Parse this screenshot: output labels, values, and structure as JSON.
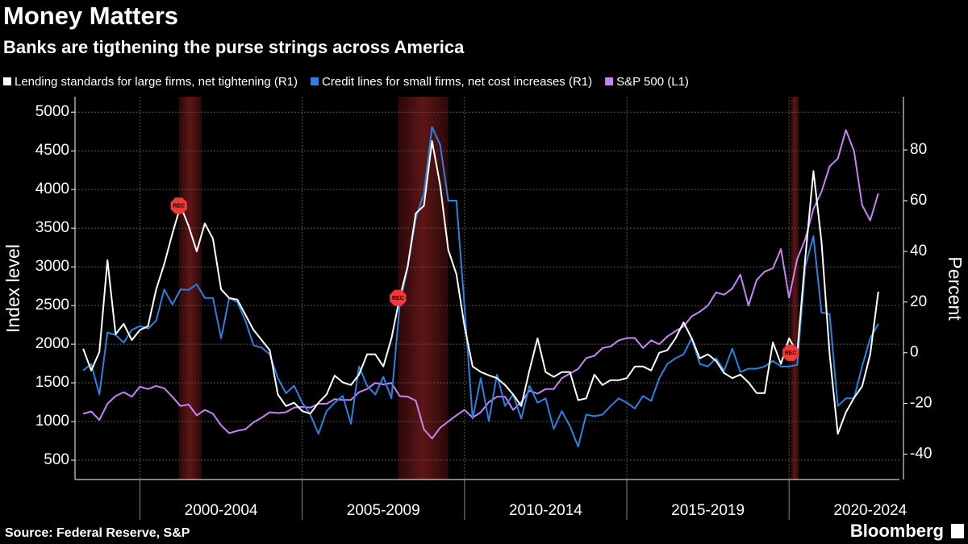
{
  "chart_data": {
    "type": "line",
    "title": "Money Matters",
    "subtitle": "Banks are tigthening the purse strings across America",
    "y_label": "Index level",
    "y2_label": "Percent",
    "source": "Source: Federal Reserve, S&P",
    "brand": "Bloomberg",
    "grid": true,
    "xlim": [
      1998,
      2023.4
    ],
    "xticks": [
      {
        "value": 2000,
        "label": "2000-2004"
      },
      {
        "value": 2005,
        "label": "2005-2009"
      },
      {
        "value": 2010,
        "label": "2010-2014"
      },
      {
        "value": 2015,
        "label": "2015-2019"
      },
      {
        "value": 2020,
        "label": "2020-2024"
      }
    ],
    "ylim": [
      250,
      5200
    ],
    "yticks": [
      500,
      1000,
      1500,
      2000,
      2500,
      3000,
      3500,
      4000,
      4500,
      5000
    ],
    "y2lim": [
      -50,
      101
    ],
    "y2ticks": [
      -40,
      -20,
      0,
      20,
      40,
      60,
      80
    ],
    "recessions": [
      {
        "start": 2001.2,
        "end": 2001.9,
        "label": "REC"
      },
      {
        "start": 2007.95,
        "end": 2009.5,
        "label": "REC"
      },
      {
        "start": 2020.05,
        "end": 2020.3,
        "label": "REC"
      }
    ],
    "x": [
      1998.25,
      1998.5,
      1998.75,
      1999,
      1999.25,
      1999.5,
      1999.75,
      2000,
      2000.25,
      2000.5,
      2000.75,
      2001,
      2001.25,
      2001.5,
      2001.75,
      2002,
      2002.25,
      2002.5,
      2002.75,
      2003,
      2003.25,
      2003.5,
      2003.75,
      2004,
      2004.25,
      2004.5,
      2004.75,
      2005,
      2005.25,
      2005.5,
      2005.75,
      2006,
      2006.25,
      2006.5,
      2006.75,
      2007,
      2007.25,
      2007.5,
      2007.75,
      2008,
      2008.25,
      2008.5,
      2008.75,
      2009,
      2009.25,
      2009.5,
      2009.75,
      2010,
      2010.25,
      2010.5,
      2010.75,
      2011,
      2011.25,
      2011.5,
      2011.75,
      2012,
      2012.25,
      2012.5,
      2012.75,
      2013,
      2013.25,
      2013.5,
      2013.75,
      2014,
      2014.25,
      2014.5,
      2014.75,
      2015,
      2015.25,
      2015.5,
      2015.75,
      2016,
      2016.25,
      2016.5,
      2016.75,
      2017,
      2017.25,
      2017.5,
      2017.75,
      2018,
      2018.25,
      2018.5,
      2018.75,
      2019,
      2019.25,
      2019.5,
      2019.75,
      2020,
      2020.25,
      2020.5,
      2020.75,
      2021,
      2021.25,
      2021.5,
      2021.75,
      2022,
      2022.25,
      2022.5,
      2022.75
    ],
    "series": [
      {
        "name": "Lending standards for large firms, net tightening (R1)",
        "color": "#ffffff",
        "axis": "y2",
        "values": [
          1.6,
          -7,
          0.3,
          36.5,
          7.3,
          11.4,
          5,
          9,
          10.5,
          25,
          35,
          47,
          58,
          50,
          40,
          51,
          45,
          25,
          21.6,
          21,
          15,
          9,
          5,
          1,
          -16.5,
          -21,
          -19.7,
          -23,
          -24,
          -19.7,
          -16.5,
          -9,
          -11.7,
          -12.7,
          -8.6,
          -0.6,
          -0.6,
          -5.4,
          5.7,
          21.6,
          34,
          55,
          58,
          83.5,
          66,
          40.6,
          31,
          10.5,
          -5.4,
          -7.6,
          -8.9,
          -10,
          -12.7,
          -16.5,
          -21,
          -7,
          5.7,
          -7.6,
          -9.5,
          -7.6,
          -7.6,
          -18.7,
          -18,
          -8.6,
          -12.7,
          -10.8,
          -10.8,
          -10,
          -5.4,
          -5.4,
          -7,
          0,
          1,
          5.7,
          12,
          5.7,
          -2.2,
          -0.6,
          -3.2,
          -8,
          -10,
          -8.6,
          -11.7,
          -15.9,
          -15.9,
          4.1,
          -4.4,
          5.7,
          0,
          37.5,
          71.7,
          43.8,
          -0.6,
          -32,
          -23.5,
          -17.8,
          -13.3,
          -0.6,
          24.1
        ]
      },
      {
        "name": "Credit lines for small firms, net cost increases (R1)",
        "color": "#2b82e0",
        "axis": "y2",
        "values": [
          -7,
          -4.4,
          -16.5,
          8,
          7,
          4,
          9,
          10.5,
          9.5,
          12.7,
          25,
          19,
          25,
          24.8,
          27,
          21.6,
          21.6,
          5.7,
          21.6,
          20,
          12.7,
          3,
          2,
          -0.6,
          -10,
          -16,
          -13,
          -19.7,
          -24.4,
          -32,
          -23,
          -19.7,
          -17,
          -28,
          -5.4,
          -13,
          -16.5,
          -9.5,
          -18,
          18.4,
          34,
          53,
          63,
          89,
          82,
          60,
          60,
          18.4,
          -26,
          -10,
          -27,
          -8.6,
          -21,
          -16.5,
          -26,
          -13,
          -19.7,
          -18,
          -30,
          -23,
          -29,
          -37,
          -24.4,
          -25,
          -24.4,
          -21,
          -18,
          -19.7,
          -22,
          -17,
          -19,
          -10,
          -4.4,
          -2.2,
          -0.6,
          5.7,
          -4.4,
          -5.4,
          -2.2,
          -7,
          1.6,
          -7.6,
          -6.3,
          -6.3,
          -5.4,
          -3.2,
          -5.4,
          -5.4,
          -4.8,
          34,
          46,
          15.9,
          15.2,
          -21,
          -18,
          -18,
          -5.4,
          5.7,
          11.4
        ]
      },
      {
        "name": "S&P 500  (L1)",
        "color": "#c683f7",
        "values": [
          1100,
          1130,
          1020,
          1230,
          1330,
          1380,
          1320,
          1450,
          1420,
          1460,
          1430,
          1320,
          1200,
          1220,
          1080,
          1150,
          1100,
          950,
          850,
          880,
          900,
          990,
          1050,
          1120,
          1110,
          1120,
          1180,
          1190,
          1180,
          1230,
          1230,
          1290,
          1280,
          1280,
          1380,
          1420,
          1500,
          1480,
          1500,
          1330,
          1320,
          1270,
          900,
          780,
          920,
          1000,
          1080,
          1150,
          1050,
          1120,
          1250,
          1320,
          1320,
          1150,
          1250,
          1400,
          1360,
          1420,
          1420,
          1560,
          1620,
          1680,
          1820,
          1850,
          1950,
          1970,
          2050,
          2080,
          2080,
          1950,
          2050,
          2000,
          2100,
          2170,
          2230,
          2360,
          2420,
          2500,
          2670,
          2640,
          2720,
          2900,
          2500,
          2830,
          2940,
          2980,
          3230,
          2600,
          3100,
          3360,
          3750,
          3970,
          4300,
          4400,
          4770,
          4500,
          3800,
          3600,
          3950
        ]
      }
    ]
  }
}
